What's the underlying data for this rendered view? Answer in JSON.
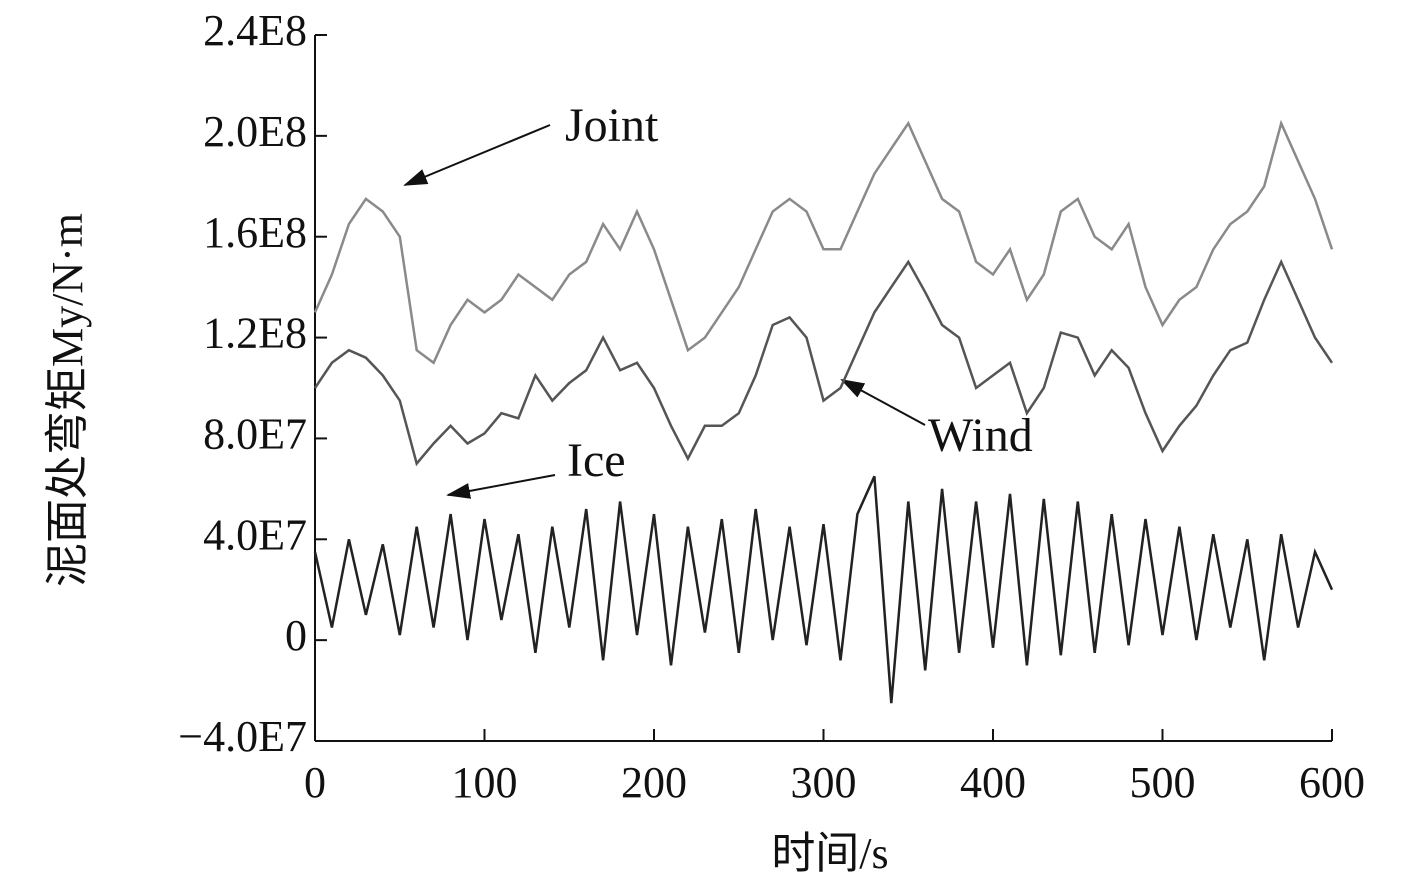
{
  "chart_data": {
    "type": "line",
    "xlabel": "时间/s",
    "ylabel": "泥面处弯矩My/N·m",
    "annotations": [
      "Joint",
      "Wind",
      "Ice"
    ],
    "x": [
      0,
      10,
      20,
      30,
      40,
      50,
      60,
      70,
      80,
      90,
      100,
      110,
      120,
      130,
      140,
      150,
      160,
      170,
      180,
      190,
      200,
      210,
      220,
      230,
      240,
      250,
      260,
      270,
      280,
      290,
      300,
      310,
      320,
      330,
      340,
      350,
      360,
      370,
      380,
      390,
      400,
      410,
      420,
      430,
      440,
      450,
      460,
      470,
      480,
      490,
      500,
      510,
      520,
      530,
      540,
      550,
      560,
      570,
      580,
      590,
      600
    ],
    "series": [
      {
        "name": "Joint",
        "color": "#8a8a8a",
        "values": [
          130000000.0,
          145000000.0,
          165000000.0,
          175000000.0,
          170000000.0,
          160000000.0,
          115000000.0,
          110000000.0,
          125000000.0,
          135000000.0,
          130000000.0,
          135000000.0,
          145000000.0,
          140000000.0,
          135000000.0,
          145000000.0,
          150000000.0,
          165000000.0,
          155000000.0,
          170000000.0,
          155000000.0,
          135000000.0,
          115000000.0,
          120000000.0,
          130000000.0,
          140000000.0,
          155000000.0,
          170000000.0,
          175000000.0,
          170000000.0,
          155000000.0,
          155000000.0,
          170000000.0,
          185000000.0,
          195000000.0,
          205000000.0,
          190000000.0,
          175000000.0,
          170000000.0,
          150000000.0,
          145000000.0,
          155000000.0,
          135000000.0,
          145000000.0,
          170000000.0,
          175000000.0,
          160000000.0,
          155000000.0,
          165000000.0,
          140000000.0,
          125000000.0,
          135000000.0,
          140000000.0,
          155000000.0,
          165000000.0,
          170000000.0,
          180000000.0,
          205000000.0,
          190000000.0,
          175000000.0,
          155000000.0
        ]
      },
      {
        "name": "Wind",
        "color": "#555555",
        "values": [
          100000000.0,
          110000000.0,
          115000000.0,
          112000000.0,
          105000000.0,
          95000000.0,
          70000000.0,
          78000000.0,
          85000000.0,
          78000000.0,
          82000000.0,
          90000000.0,
          88000000.0,
          105000000.0,
          95000000.0,
          102000000.0,
          107000000.0,
          120000000.0,
          107000000.0,
          110000000.0,
          100000000.0,
          85000000.0,
          72000000.0,
          85000000.0,
          85000000.0,
          90000000.0,
          105000000.0,
          125000000.0,
          128000000.0,
          120000000.0,
          95000000.0,
          100000000.0,
          115000000.0,
          130000000.0,
          140000000.0,
          150000000.0,
          138000000.0,
          125000000.0,
          120000000.0,
          100000000.0,
          105000000.0,
          110000000.0,
          90000000.0,
          100000000.0,
          122000000.0,
          120000000.0,
          105000000.0,
          115000000.0,
          108000000.0,
          90000000.0,
          75000000.0,
          85000000.0,
          93000000.0,
          105000000.0,
          115000000.0,
          118000000.0,
          135000000.0,
          150000000.0,
          135000000.0,
          120000000.0,
          110000000.0
        ]
      },
      {
        "name": "Ice",
        "color": "#222222",
        "values": [
          35000000.0,
          5000000.0,
          40000000.0,
          10000000.0,
          38000000.0,
          2000000.0,
          45000000.0,
          5000000.0,
          50000000.0,
          0.0,
          48000000.0,
          8000000.0,
          42000000.0,
          -5000000.0,
          45000000.0,
          5000000.0,
          52000000.0,
          -8000000.0,
          55000000.0,
          2000000.0,
          50000000.0,
          -10000000.0,
          45000000.0,
          3000000.0,
          48000000.0,
          -5000000.0,
          52000000.0,
          0.0,
          45000000.0,
          -2000000.0,
          46000000.0,
          -8000000.0,
          50000000.0,
          65000000.0,
          -25000000.0,
          55000000.0,
          -12000000.0,
          60000000.0,
          -5000000.0,
          55000000.0,
          -3000000.0,
          58000000.0,
          -10000000.0,
          56000000.0,
          -6000000.0,
          55000000.0,
          -5000000.0,
          50000000.0,
          -2000000.0,
          48000000.0,
          2000000.0,
          45000000.0,
          0.0,
          42000000.0,
          5000000.0,
          40000000.0,
          -8000000.0,
          42000000.0,
          5000000.0,
          35000000.0,
          20000000.0
        ]
      }
    ],
    "xlim": [
      0,
      600
    ],
    "xticks": [
      0,
      100,
      200,
      300,
      400,
      500,
      600
    ],
    "ylim": [
      -40000000.0,
      240000000.0
    ],
    "yticks": [
      {
        "value": -40000000.0,
        "label": "−4.0E7"
      },
      0,
      {
        "value": 40000000.0,
        "label": "4.0E7"
      },
      {
        "value": 80000000.0,
        "label": "8.0E7"
      },
      {
        "value": 120000000.0,
        "label": "1.2E8"
      },
      {
        "value": 160000000.0,
        "label": "1.6E8"
      },
      {
        "value": 200000000.0,
        "label": "2.0E8"
      },
      {
        "value": 240000000.0,
        "label": "2.4E8"
      }
    ],
    "grid": false
  }
}
